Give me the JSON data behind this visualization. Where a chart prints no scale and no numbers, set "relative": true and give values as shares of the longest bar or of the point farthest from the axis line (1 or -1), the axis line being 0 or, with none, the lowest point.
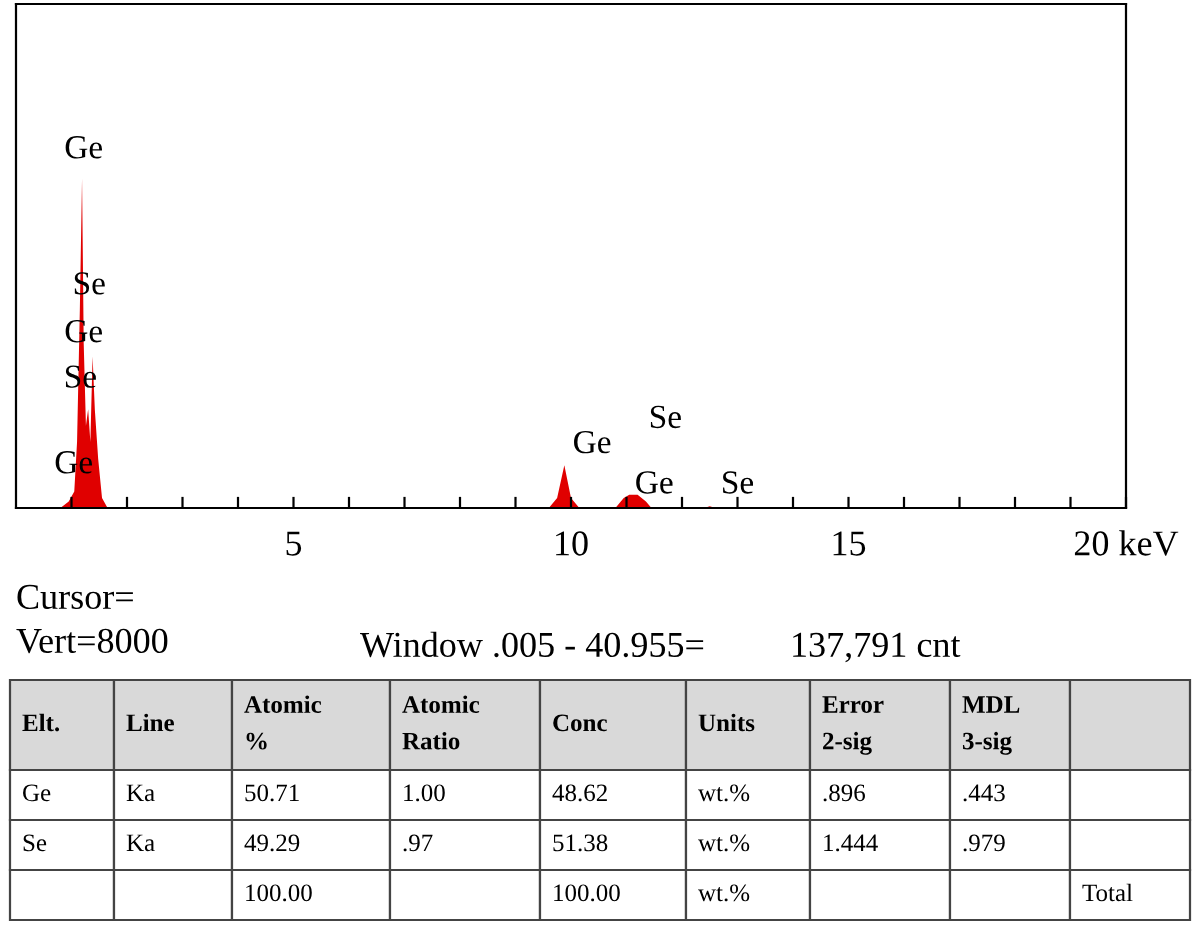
{
  "chart_data": {
    "type": "area",
    "relative": true,
    "x": [
      0,
      0.8,
      0.95,
      1.05,
      1.1,
      1.15,
      1.19,
      1.22,
      1.26,
      1.3,
      1.34,
      1.38,
      1.42,
      1.48,
      1.55,
      1.65,
      9.6,
      9.75,
      9.88,
      10.0,
      10.15,
      10.8,
      10.95,
      11.05,
      11.2,
      11.35,
      11.45,
      12.4,
      12.5,
      12.6,
      20
    ],
    "values": [
      0,
      0,
      0.02,
      0.05,
      0.2,
      0.6,
      1.0,
      0.5,
      0.25,
      0.3,
      0.2,
      0.46,
      0.3,
      0.15,
      0.03,
      0,
      0,
      0.03,
      0.13,
      0.03,
      0,
      0,
      0.03,
      0.04,
      0.04,
      0.02,
      0,
      0,
      0.005,
      0,
      0
    ],
    "color": "#e00000",
    "xlim": [
      0,
      20
    ],
    "xticks": [
      {
        "value": 1,
        "label": null
      },
      {
        "value": 2,
        "label": null
      },
      {
        "value": 3,
        "label": null
      },
      {
        "value": 4,
        "label": null
      },
      5,
      {
        "value": 6,
        "label": null
      },
      {
        "value": 7,
        "label": null
      },
      {
        "value": 8,
        "label": null
      },
      {
        "value": 9,
        "label": null
      },
      10,
      {
        "value": 11,
        "label": null
      },
      {
        "value": 12,
        "label": null
      },
      {
        "value": 13,
        "label": null
      },
      {
        "value": 14,
        "label": null
      },
      15,
      {
        "value": 16,
        "label": null
      },
      {
        "value": 17,
        "label": null
      },
      {
        "value": 18,
        "label": null
      },
      {
        "value": 19,
        "label": null
      },
      {
        "value": 20,
        "label": "20 keV"
      }
    ],
    "grid": false,
    "legend": false,
    "annotations": [
      "Ge",
      "Se",
      "Ge",
      "Se",
      "Ge",
      "Ge",
      "Se",
      "Ge",
      "Se",
      "Cursor=",
      "Vert=8000",
      "Window .005 - 40.955=",
      "137,791 cnt",
      "Elt.",
      "Line",
      "Atomic\n%",
      "Atomic\nRatio",
      "Conc",
      "Units",
      "Error\n2-sig",
      "MDL\n3-sig",
      null,
      "Ge",
      "Ka",
      "50.71",
      "1.00",
      "48.62",
      "wt.%",
      ".896",
      ".443",
      null,
      "Se",
      "Ka",
      "49.29",
      ".97",
      "51.38",
      "wt.%",
      "1.444",
      ".979",
      null,
      null,
      null,
      "100.00",
      null,
      "100.00",
      "wt.%",
      null,
      null,
      "Total"
    ]
  }
}
